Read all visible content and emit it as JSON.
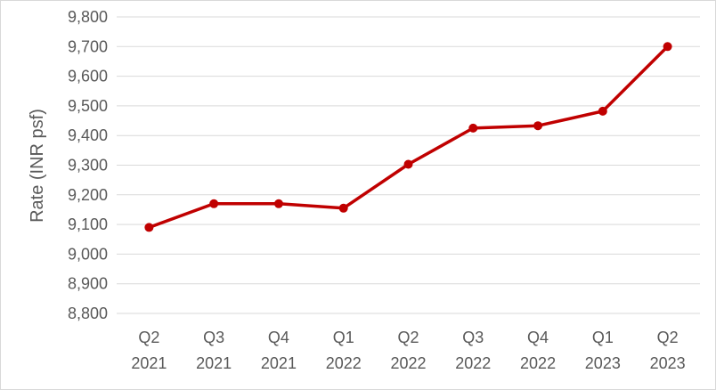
{
  "chart_data": {
    "type": "line",
    "title": "",
    "xlabel": "",
    "ylabel": "Rate (INR psf)",
    "ylim": [
      8800,
      9800
    ],
    "ytick_step": 100,
    "ytick_labels": [
      "8,800",
      "8,900",
      "9,000",
      "9,100",
      "9,200",
      "9,300",
      "9,400",
      "9,500",
      "9,600",
      "9,700",
      "9,800"
    ],
    "grid": true,
    "legend": "none",
    "categories": [
      [
        "Q2",
        "2021"
      ],
      [
        "Q3",
        "2021"
      ],
      [
        "Q4",
        "2021"
      ],
      [
        "Q1",
        "2022"
      ],
      [
        "Q2",
        "2022"
      ],
      [
        "Q3",
        "2022"
      ],
      [
        "Q4",
        "2022"
      ],
      [
        "Q1",
        "2023"
      ],
      [
        "Q2",
        "2023"
      ]
    ],
    "series": [
      {
        "values": [
          9090,
          9170,
          9170,
          9155,
          9303,
          9425,
          9433,
          9482,
          9700
        ],
        "color": "#c00000"
      }
    ]
  }
}
